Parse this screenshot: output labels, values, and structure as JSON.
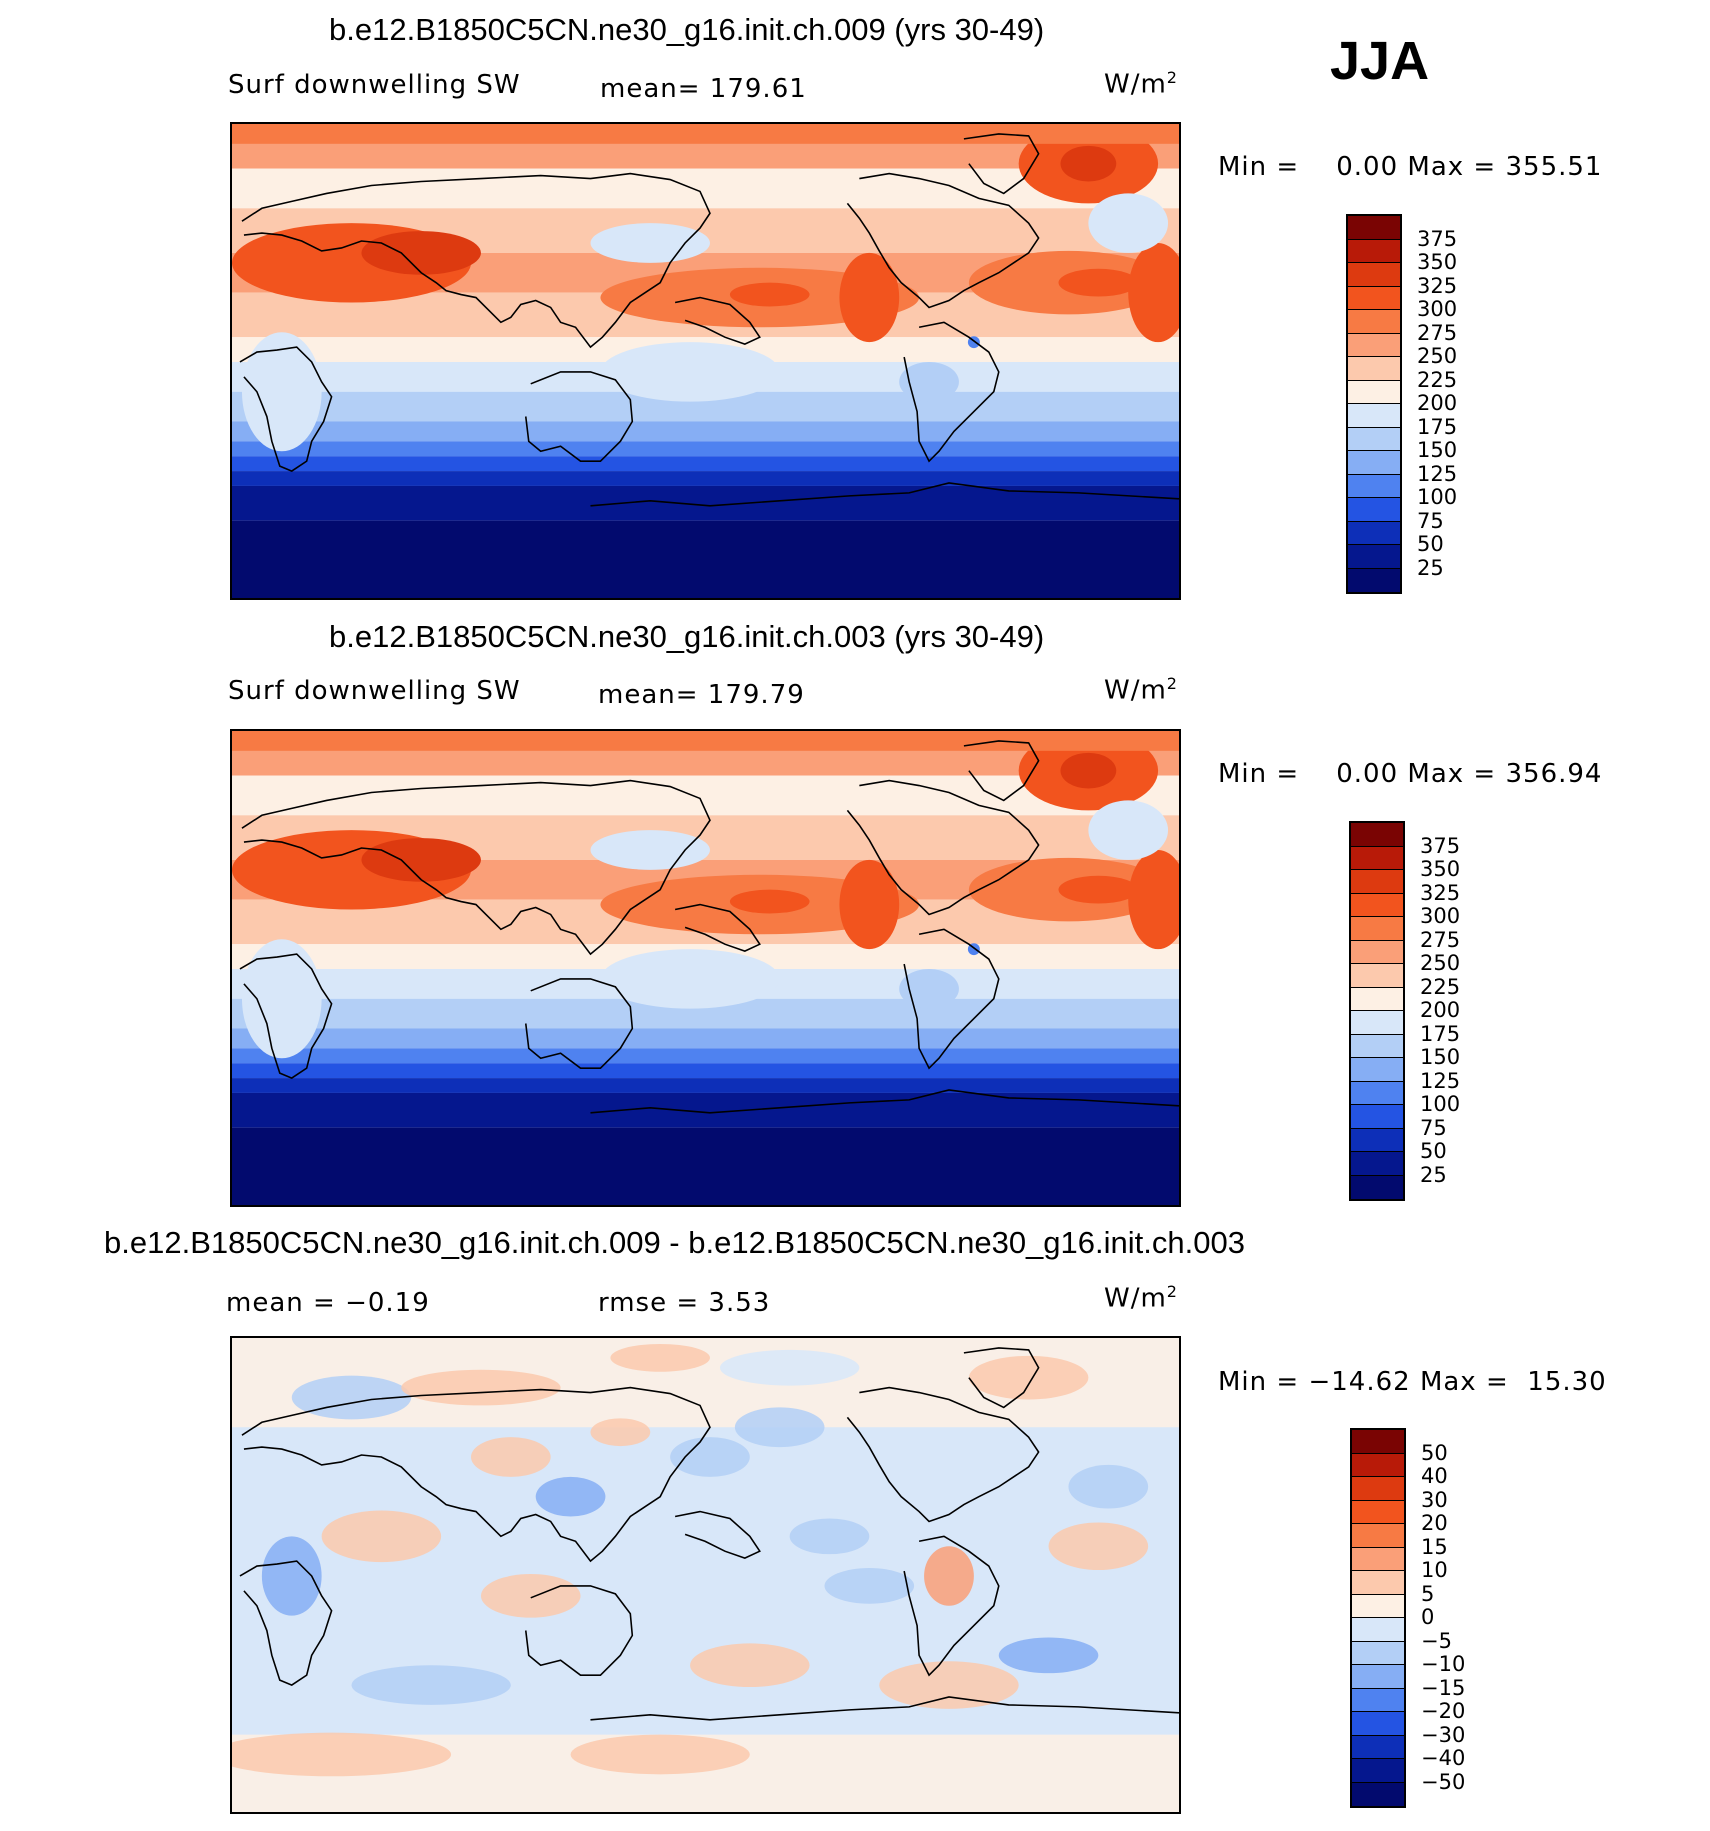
{
  "season": "JJA",
  "panels": [
    {
      "title": "b.e12.B1850C5CN.ne30_g16.init.ch.009 (yrs 30-49)",
      "variable": "Surf downwelling SW",
      "stat_label": "mean=",
      "stat_value": "179.61",
      "units": "W/m",
      "units_exp": "2",
      "min_label": "Min =",
      "min_value": "0.00",
      "max_label": "Max =",
      "max_value": "355.51"
    },
    {
      "title": "b.e12.B1850C5CN.ne30_g16.init.ch.003 (yrs 30-49)",
      "variable": "Surf downwelling SW",
      "stat_label": "mean=",
      "stat_value": "179.79",
      "units": "W/m",
      "units_exp": "2",
      "min_label": "Min =",
      "min_value": "0.00",
      "max_label": "Max =",
      "max_value": "356.94"
    },
    {
      "title": "b.e12.B1850C5CN.ne30_g16.init.ch.009 - b.e12.B1850C5CN.ne30_g16.init.ch.003",
      "mean_label": "mean =",
      "mean_value": "−0.19",
      "rmse_label": "rmse =",
      "rmse_value": "3.53",
      "units": "W/m",
      "units_exp": "2",
      "min_label": "Min =",
      "min_value": "−14.62",
      "max_label": "Max =",
      "max_value": "15.30"
    }
  ],
  "colorbars": {
    "absolute": {
      "labels": [
        "375",
        "350",
        "325",
        "300",
        "275",
        "250",
        "225",
        "200",
        "175",
        "150",
        "125",
        "100",
        "75",
        "50",
        "25"
      ],
      "colors": [
        "#7a0403",
        "#b81a08",
        "#dd3a10",
        "#f2541e",
        "#f77a44",
        "#fa9f78",
        "#fcc9ad",
        "#fdf0e4",
        "#d8e7f9",
        "#b3cff6",
        "#86aef4",
        "#4f82f0",
        "#2454e3",
        "#0d2fb8",
        "#05178e",
        "#020a6e"
      ]
    },
    "difference": {
      "labels": [
        "50",
        "40",
        "30",
        "20",
        "15",
        "10",
        "5",
        "0",
        "−5",
        "−10",
        "−15",
        "−20",
        "−30",
        "−40",
        "−50"
      ],
      "colors": [
        "#7a0403",
        "#b81a08",
        "#dd3a10",
        "#f2541e",
        "#f77a44",
        "#fa9f78",
        "#fcc9ad",
        "#fdf0e4",
        "#d8e7f9",
        "#b3cff6",
        "#86aef4",
        "#4f82f0",
        "#2454e3",
        "#0d2fb8",
        "#05178e",
        "#020a6e"
      ]
    }
  },
  "chart_data": [
    {
      "type": "heatmap",
      "title": "b.e12.B1850C5CN.ne30_g16.init.ch.009 (yrs 30-49)",
      "variable": "Surf downwelling SW",
      "units": "W/m2",
      "season": "JJA",
      "mean": 179.61,
      "min": 0.0,
      "max": 355.51,
      "contour_levels": [
        25,
        50,
        75,
        100,
        125,
        150,
        175,
        200,
        225,
        250,
        275,
        300,
        325,
        350,
        375
      ]
    },
    {
      "type": "heatmap",
      "title": "b.e12.B1850C5CN.ne30_g16.init.ch.003 (yrs 30-49)",
      "variable": "Surf downwelling SW",
      "units": "W/m2",
      "season": "JJA",
      "mean": 179.79,
      "min": 0.0,
      "max": 356.94,
      "contour_levels": [
        25,
        50,
        75,
        100,
        125,
        150,
        175,
        200,
        225,
        250,
        275,
        300,
        325,
        350,
        375
      ]
    },
    {
      "type": "heatmap",
      "title": "b.e12.B1850C5CN.ne30_g16.init.ch.009 - b.e12.B1850C5CN.ne30_g16.init.ch.003",
      "units": "W/m2",
      "season": "JJA",
      "mean": -0.19,
      "rmse": 3.53,
      "min": -14.62,
      "max": 15.3,
      "contour_levels": [
        -50,
        -40,
        -30,
        -20,
        -15,
        -10,
        -5,
        0,
        5,
        10,
        15,
        20,
        30,
        40,
        50
      ]
    }
  ]
}
